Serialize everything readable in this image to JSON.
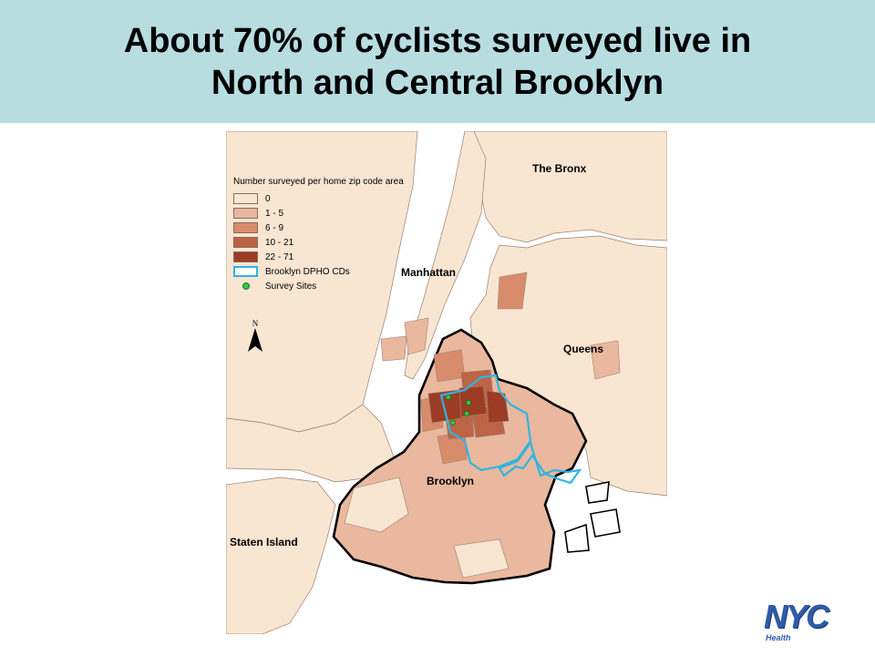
{
  "header": {
    "title_line1": "About 70% of cyclists surveyed live in",
    "title_line2": "North and Central Brooklyn",
    "background_color": "#b7dde1"
  },
  "map": {
    "legend": {
      "title": "Number surveyed per home zip code area",
      "classes": [
        {
          "label": "0",
          "color": "#f8e5d2"
        },
        {
          "label": "1 - 5",
          "color": "#e9b89e"
        },
        {
          "label": "6 - 9",
          "color": "#d88c6c"
        },
        {
          "label": "10 - 21",
          "color": "#bd6446"
        },
        {
          "label": "22 - 71",
          "color": "#9c3c25"
        }
      ],
      "cd_label": "Brooklyn DPHO CDs",
      "cd_color": "#2fb5e0",
      "sites_label": "Survey Sites",
      "sites_color": "#2ecc40"
    },
    "north_label": "N",
    "boroughs": {
      "bronx": "The Bronx",
      "manhattan": "Manhattan",
      "queens": "Queens",
      "brooklyn": "Brooklyn",
      "staten_island": "Staten Island"
    }
  },
  "logo": {
    "text": "NYC",
    "subtext": "Health",
    "color": "#2f5ba8"
  }
}
